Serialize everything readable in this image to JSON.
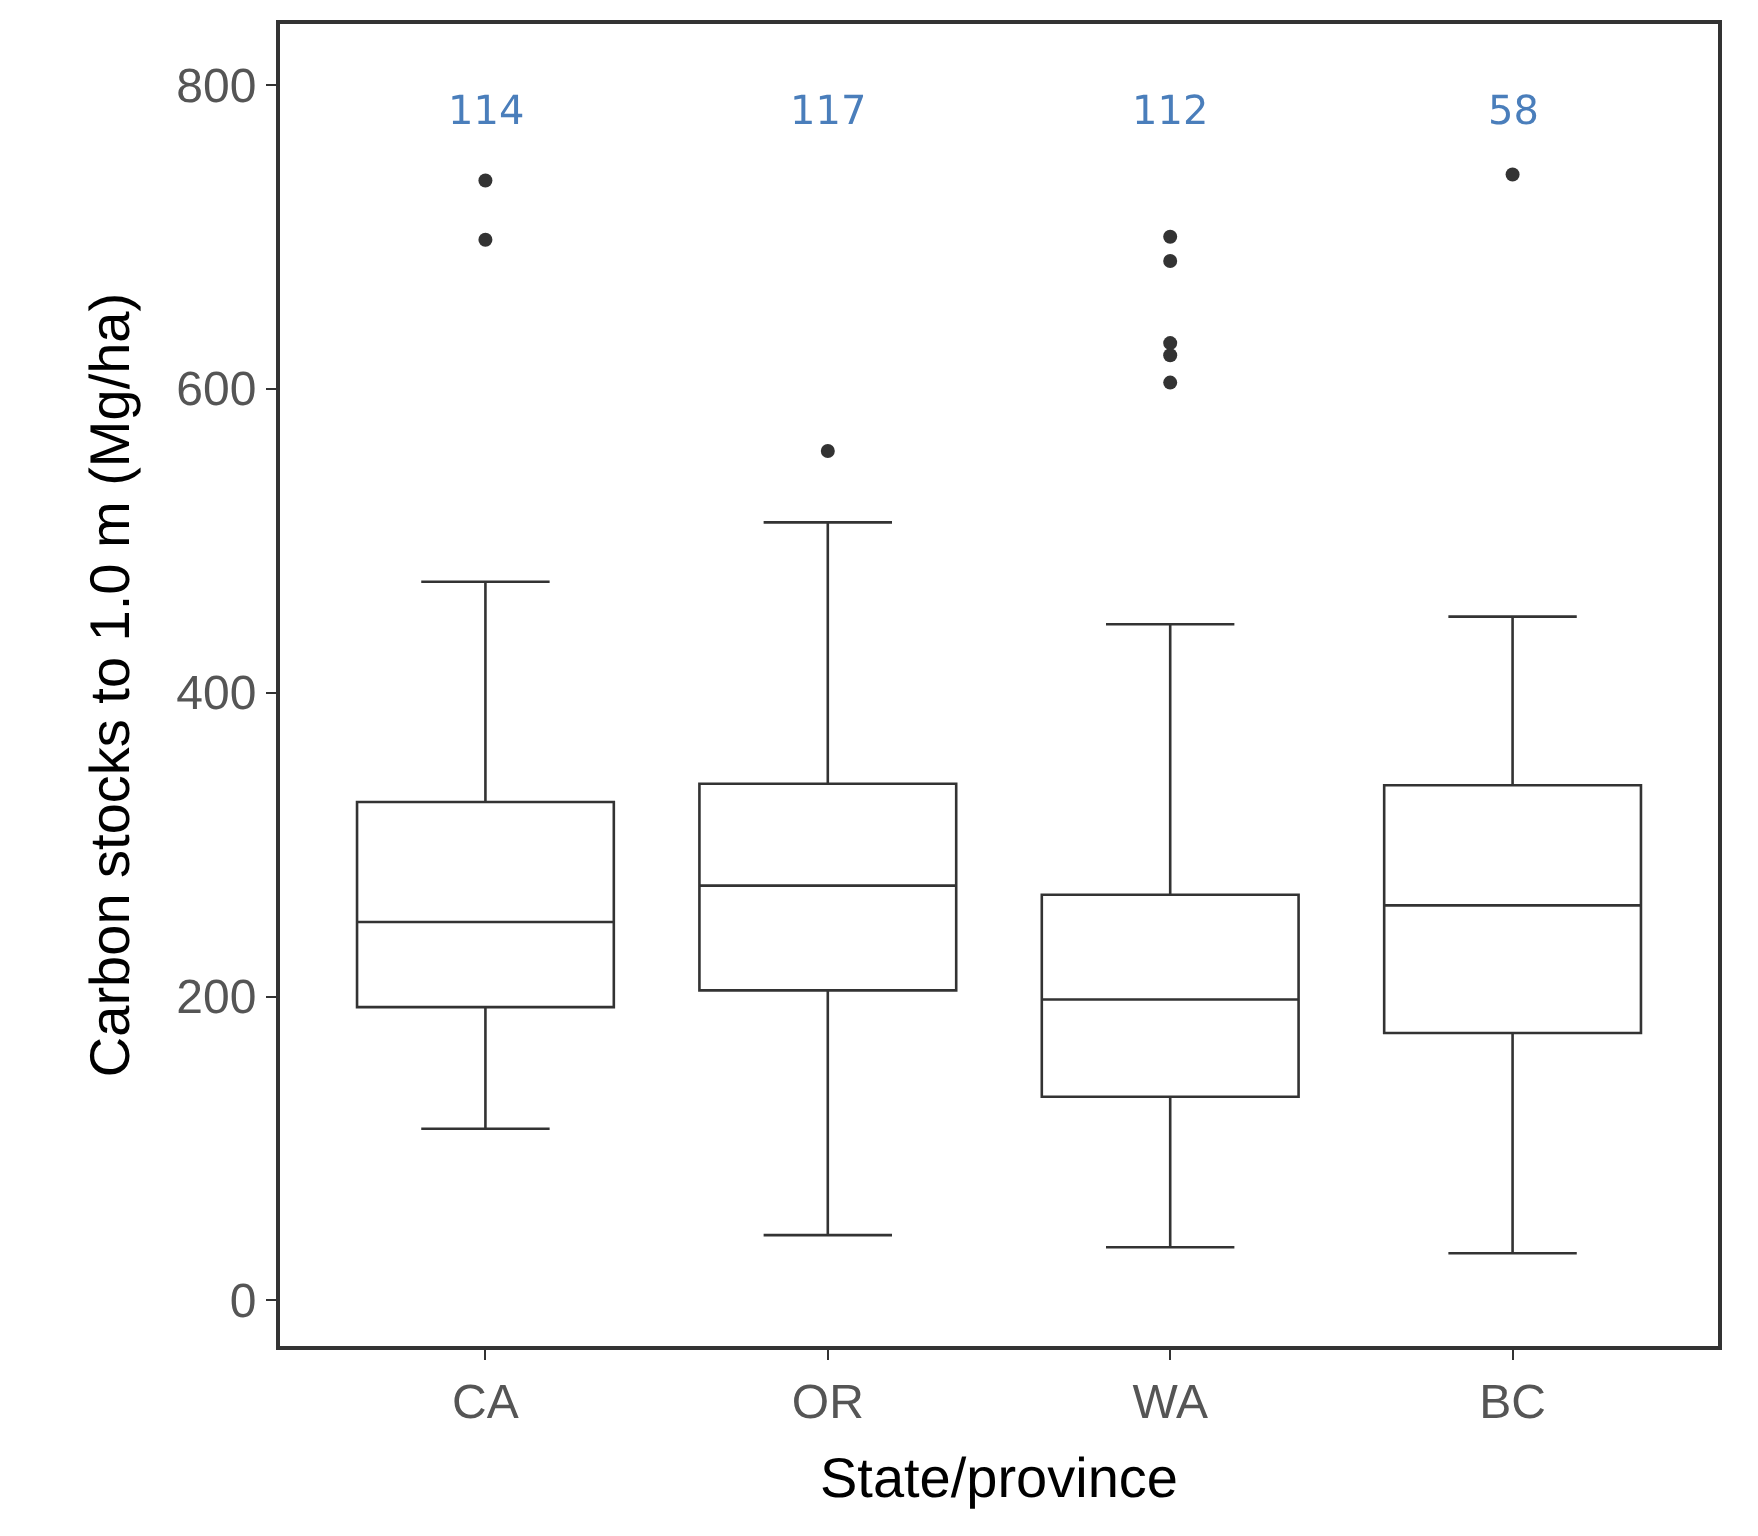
{
  "chart_data": {
    "type": "box",
    "xlabel": "State/province",
    "ylabel": "Carbon stocks to 1.0 m (Mg/ha)",
    "categories": [
      "CA",
      "OR",
      "WA",
      "BC"
    ],
    "boxes": [
      {
        "low": 113,
        "q1": 193,
        "median": 249,
        "q3": 328,
        "high": 473,
        "outliers": [
          737,
          698
        ]
      },
      {
        "low": 43,
        "q1": 204,
        "median": 273,
        "q3": 340,
        "high": 512,
        "outliers": [
          559
        ]
      },
      {
        "low": 35,
        "q1": 134,
        "median": 198,
        "q3": 267,
        "high": 445,
        "outliers": [
          700,
          684,
          630,
          622,
          604
        ]
      },
      {
        "low": 31,
        "q1": 176,
        "median": 260,
        "q3": 339,
        "high": 450,
        "outliers": [
          741
        ]
      }
    ],
    "color": "#333333",
    "ylim": [
      -30,
      840
    ],
    "yticks": [
      0,
      200,
      400,
      600,
      800
    ],
    "annotations": [
      "114",
      "117",
      "112",
      "58"
    ]
  }
}
